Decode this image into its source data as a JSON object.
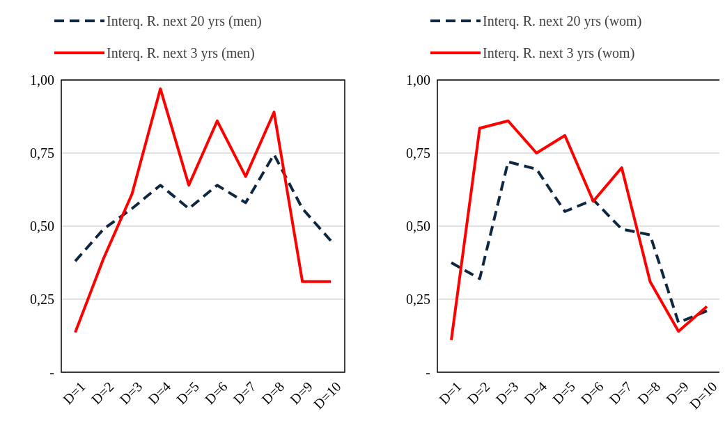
{
  "chart_data": [
    {
      "type": "line",
      "categories": [
        "D=1",
        "D=2",
        "D=3",
        "D=4",
        "D=5",
        "D=6",
        "D=7",
        "D=8",
        "D=9",
        "D=10"
      ],
      "ylim": [
        0,
        1
      ],
      "yticks": [
        {
          "value": 0,
          "label": "-"
        },
        {
          "value": 0.25,
          "label": "0,25"
        },
        {
          "value": 0.5,
          "label": "0,50"
        },
        {
          "value": 0.75,
          "label": "0,75"
        },
        {
          "value": 1,
          "label": "1,00"
        }
      ],
      "grid": "y",
      "legend": "top",
      "series": [
        {
          "name": "Interq. R. next 20 yrs (men)",
          "color": "#0e2841",
          "line_style": "dashed",
          "values": [
            0.38,
            0.49,
            0.56,
            0.64,
            0.56,
            0.64,
            0.58,
            0.745,
            0.56,
            0.45
          ]
        },
        {
          "name": "Interq. R. next 3 yrs (men)",
          "color": "#ff0000",
          "line_style": "solid",
          "values": [
            0.136,
            0.39,
            0.61,
            0.97,
            0.64,
            0.86,
            0.67,
            0.89,
            0.31,
            0.31
          ]
        }
      ]
    },
    {
      "type": "line",
      "categories": [
        "D=1",
        "D=2",
        "D=3",
        "D=4",
        "D=5",
        "D=6",
        "D=7",
        "D=8",
        "D=9",
        "D=10"
      ],
      "ylim": [
        0,
        1
      ],
      "yticks": [
        {
          "value": 0,
          "label": "-"
        },
        {
          "value": 0.25,
          "label": "0,25"
        },
        {
          "value": 0.5,
          "label": "0,50"
        },
        {
          "value": 0.75,
          "label": "0,75"
        },
        {
          "value": 1,
          "label": "1,00"
        }
      ],
      "grid": "y",
      "legend": "top",
      "series": [
        {
          "name": "Interq. R. next 20 yrs (wom)",
          "color": "#0e2841",
          "line_style": "dashed",
          "values": [
            0.375,
            0.32,
            0.72,
            0.695,
            0.55,
            0.59,
            0.49,
            0.47,
            0.17,
            0.21
          ]
        },
        {
          "name": "Interq. R. next 3 yrs (wom)",
          "color": "#ff0000",
          "line_style": "solid",
          "values": [
            0.11,
            0.835,
            0.86,
            0.75,
            0.81,
            0.585,
            0.7,
            0.31,
            0.14,
            0.225
          ]
        }
      ]
    }
  ]
}
